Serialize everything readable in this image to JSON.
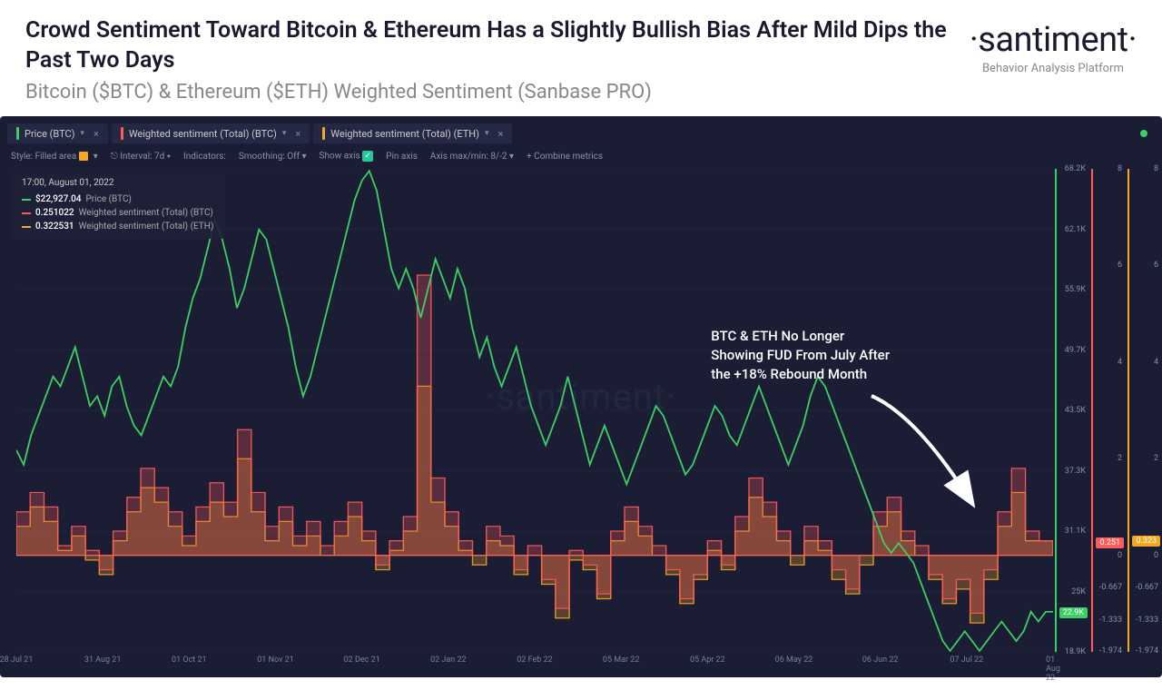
{
  "header": {
    "title": "Crowd Sentiment Toward Bitcoin & Ethereum Has a Slightly Bullish Bias After Mild Dips the Past Two Days",
    "subtitle": "Bitcoin ($BTC) & Ethereum ($ETH) Weighted Sentiment (Sanbase PRO)"
  },
  "brand": {
    "name": "·santiment·",
    "tagline": "Behavior Analysis Platform"
  },
  "tabs": [
    {
      "label": "Price (BTC)",
      "color": "#3ccf63"
    },
    {
      "label": "Weighted sentiment (Total) (BTC)",
      "color": "#ff5b5b"
    },
    {
      "label": "Weighted sentiment (Total) (ETH)",
      "color": "#f5a623"
    }
  ],
  "controls": {
    "style": "Style: Filled area",
    "interval": "Interval: 7d",
    "indicators": "Indicators:",
    "smoothing": "Smoothing: Off",
    "showaxis": "Show axis",
    "pinaxis": "Pin axis",
    "axismm": "Axis max/min: 8/-2",
    "combine": "+ Combine metrics"
  },
  "legend": {
    "timestamp": "17:00, August 01, 2022",
    "rows": [
      {
        "color": "#3ccf63",
        "value": "$22,927.04",
        "label": "Price (BTC)"
      },
      {
        "color": "#ff5b5b",
        "value": "0.251022",
        "label": "Weighted sentiment (Total) (BTC)"
      },
      {
        "color": "#f5a623",
        "value": "0.322531",
        "label": "Weighted sentiment (Total) (ETH)"
      }
    ]
  },
  "annotation": {
    "text": "BTC & ETH No Longer\nShowing FUD From July After\nthe +18% Rebound Month"
  },
  "watermark": "·santiment·",
  "chart": {
    "plot_bg": "#1a1d33",
    "grid_color": "rgba(120,130,170,0.08)",
    "line_color": "#3ccf63",
    "btc_fill": "rgba(255,91,91,0.28)",
    "btc_stroke": "#ff5b5b",
    "eth_fill": "rgba(245,166,35,0.28)",
    "eth_stroke": "#f5a623",
    "x_labels": [
      "28 Jul 21",
      "31 Aug 21",
      "01 Oct 21",
      "01 Nov 21",
      "02 Dec 21",
      "02 Jan 22",
      "02 Feb 22",
      "05 Mar 22",
      "05 Apr 22",
      "06 May 22",
      "06 Jun 22",
      "07 Jul 22",
      "01 Aug 22"
    ],
    "price_axis": {
      "ticks": [
        "68.2K",
        "62.1K",
        "55.9K",
        "49.7K",
        "43.5K",
        "37.3K",
        "31.1K",
        "25K",
        "18.9K"
      ],
      "min": 18900,
      "max": 68200,
      "badge": {
        "value": "22.9K",
        "color": "#3ccf63",
        "pos": 0.92
      }
    },
    "sent_axis": {
      "ticks": [
        "8",
        "6",
        "4",
        "2",
        "0",
        "-0.667",
        "-1.333",
        "-1.974"
      ],
      "min": -2,
      "max": 8,
      "badge_btc": {
        "value": "0.251",
        "color": "#ff5b5b",
        "pos": 0.775
      },
      "badge_eth": {
        "value": "0.323",
        "color": "#f5a623",
        "pos": 0.771
      }
    },
    "price_series": [
      39.5,
      38,
      41,
      43,
      45,
      47,
      46,
      48,
      50,
      47,
      44,
      45,
      43,
      46,
      47,
      44,
      42,
      41,
      43,
      45,
      47,
      46,
      48,
      52,
      55,
      57,
      60,
      63,
      61,
      58,
      54,
      56,
      59,
      62,
      61,
      58,
      55,
      52,
      48,
      45,
      47,
      50,
      53,
      56,
      59,
      62,
      65,
      67,
      68,
      66,
      62,
      58,
      56,
      58,
      56,
      53,
      56,
      59,
      57,
      55,
      58,
      56,
      52,
      49,
      51,
      48,
      46,
      48,
      50,
      47,
      44,
      42,
      40,
      42,
      44,
      47,
      44,
      41,
      38,
      40,
      42,
      40,
      38,
      36,
      38,
      40,
      42,
      44,
      43,
      41,
      39,
      37,
      38,
      40,
      42,
      44,
      43,
      41,
      40,
      42,
      44,
      46,
      44,
      42,
      40,
      38,
      40,
      42,
      45,
      47,
      46,
      44,
      42,
      40,
      38,
      36,
      34,
      32,
      30,
      29,
      30,
      29,
      28,
      26,
      24,
      22,
      20,
      19,
      20,
      21,
      20,
      19,
      20,
      21,
      22,
      21,
      20,
      21,
      23,
      22,
      23,
      23
    ],
    "btc_sent": [
      0.9,
      1.3,
      1.0,
      0.2,
      0.6,
      0.1,
      -0.3,
      0.5,
      1.2,
      1.8,
      1.4,
      0.9,
      0.4,
      1.0,
      1.5,
      1.1,
      2.6,
      1.3,
      0.6,
      1.0,
      0.4,
      0.7,
      0.2,
      0.7,
      1.1,
      0.5,
      -0.2,
      0.3,
      0.8,
      5.8,
      1.6,
      0.9,
      0.3,
      0.0,
      0.6,
      0.4,
      -0.3,
      0.2,
      -0.5,
      -1.1,
      0.1,
      -0.2,
      -0.8,
      0.5,
      1.0,
      0.6,
      0.2,
      -0.3,
      -0.9,
      -0.4,
      0.3,
      -0.2,
      0.8,
      1.6,
      1.1,
      0.5,
      0.0,
      0.6,
      0.3,
      -0.3,
      -0.7,
      0.0,
      0.9,
      1.2,
      0.5,
      0.2,
      -0.4,
      -0.9,
      -0.5,
      -1.2,
      -0.3,
      0.9,
      1.8,
      0.5,
      0.3
    ],
    "eth_sent": [
      0.6,
      1.0,
      0.7,
      0.1,
      0.4,
      -0.1,
      -0.4,
      0.3,
      0.9,
      1.4,
      1.1,
      0.6,
      0.2,
      0.7,
      1.1,
      0.8,
      2.0,
      0.9,
      0.3,
      0.7,
      0.2,
      0.4,
      0.0,
      0.4,
      0.8,
      0.3,
      -0.3,
      0.1,
      0.5,
      3.5,
      1.1,
      0.6,
      0.1,
      -0.2,
      0.3,
      0.2,
      -0.4,
      0.0,
      -0.6,
      -1.3,
      -0.1,
      -0.3,
      -0.9,
      0.3,
      0.7,
      0.4,
      0.0,
      -0.4,
      -1.0,
      -0.5,
      0.1,
      -0.3,
      0.5,
      1.2,
      0.8,
      0.3,
      -0.2,
      0.3,
      0.1,
      -0.5,
      -0.8,
      -0.2,
      0.6,
      0.9,
      0.3,
      0.0,
      -0.5,
      -1.0,
      -0.7,
      -1.4,
      -0.5,
      0.6,
      1.3,
      0.3,
      0.3
    ]
  }
}
